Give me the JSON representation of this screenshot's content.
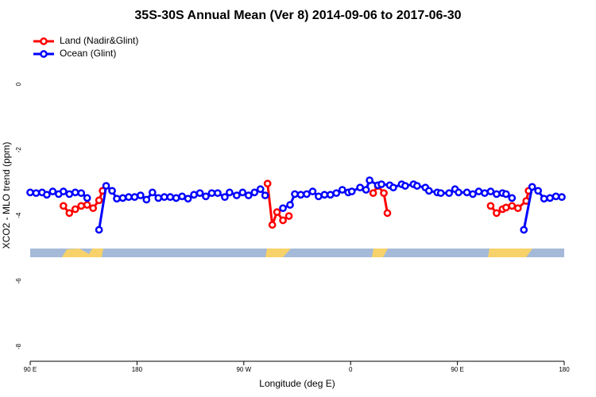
{
  "chart_data": {
    "type": "line",
    "title": "35S-30S Annual Mean (Ver 8)   2014-09-06 to 2017-06-30",
    "x_label": "Longitude (deg E)",
    "y_label": "XCO2 - MLO trend (ppm)",
    "xlim": [
      90,
      540
    ],
    "xticks": [
      {
        "value": 90,
        "label": "90 E"
      },
      180,
      {
        "value": 270,
        "label": "90 W"
      },
      {
        "value": 360,
        "label": "0"
      },
      {
        "value": 450,
        "label": "90 E"
      },
      {
        "value": 540,
        "label": "180"
      }
    ],
    "ylim": [
      -8.45,
      1.65
    ],
    "yticks": [
      0,
      -2,
      -4,
      -6,
      -8
    ],
    "legend": "top-left",
    "series": [
      {
        "name": "Land (Nadir&Glint)",
        "color": "#ff0000",
        "x": [
          118,
          123,
          128,
          133,
          138,
          143,
          148,
          151,
          null,
          290,
          294,
          298,
          303,
          308,
          null,
          379,
          383,
          388,
          391,
          null,
          478,
          483,
          488,
          491,
          496,
          501,
          508,
          510
        ],
        "values": [
          -3.71,
          -3.93,
          -3.81,
          -3.71,
          -3.68,
          -3.78,
          -3.54,
          -3.25,
          null,
          -3.03,
          -4.29,
          -3.9,
          -4.15,
          -4.02,
          null,
          -3.32,
          -3.1,
          -3.32,
          -3.93,
          null,
          -3.71,
          -3.93,
          -3.81,
          -3.76,
          -3.71,
          -3.78,
          -3.56,
          -3.25
        ]
      },
      {
        "name": "Ocean (Glint)",
        "color": "#0000ff",
        "x": [
          90,
          95,
          100,
          104,
          109,
          114,
          118,
          123,
          128,
          133,
          138,
          null,
          148,
          154,
          159,
          163,
          168,
          173,
          178,
          183,
          188,
          193,
          198,
          203,
          208,
          213,
          218,
          223,
          228,
          233,
          238,
          243,
          248,
          254,
          258,
          264,
          269,
          274,
          279,
          284,
          288,
          null,
          303,
          309,
          313,
          318,
          323,
          328,
          333,
          338,
          343,
          348,
          353,
          358,
          361,
          368,
          373,
          376,
          383,
          386,
          393,
          396,
          403,
          406,
          413,
          416,
          423,
          426,
          433,
          436,
          443,
          448,
          451,
          458,
          463,
          468,
          473,
          478,
          483,
          488,
          491,
          496,
          null,
          506,
          513,
          518,
          523,
          528,
          533,
          538
        ],
        "values": [
          -3.3,
          -3.32,
          -3.3,
          -3.37,
          -3.27,
          -3.35,
          -3.27,
          -3.35,
          -3.3,
          -3.32,
          -3.47,
          null,
          -4.44,
          -3.1,
          -3.25,
          -3.49,
          -3.47,
          -3.44,
          -3.44,
          -3.39,
          -3.52,
          -3.3,
          -3.47,
          -3.44,
          -3.44,
          -3.47,
          -3.42,
          -3.49,
          -3.37,
          -3.32,
          -3.42,
          -3.32,
          -3.32,
          -3.44,
          -3.3,
          -3.39,
          -3.3,
          -3.39,
          -3.3,
          -3.2,
          -3.39,
          null,
          -3.78,
          -3.68,
          -3.35,
          -3.37,
          -3.35,
          -3.27,
          -3.42,
          -3.37,
          -3.37,
          -3.32,
          -3.22,
          -3.3,
          -3.27,
          -3.15,
          -3.22,
          -2.93,
          -3.08,
          -3.05,
          -3.08,
          -3.15,
          -3.05,
          -3.1,
          -3.05,
          -3.1,
          -3.15,
          -3.25,
          -3.3,
          -3.32,
          -3.32,
          -3.2,
          -3.3,
          -3.3,
          -3.35,
          -3.27,
          -3.32,
          -3.27,
          -3.35,
          -3.32,
          -3.35,
          -3.47,
          null,
          -4.44,
          -3.13,
          -3.25,
          -3.49,
          -3.47,
          -3.42,
          -3.44
        ]
      }
    ]
  }
}
